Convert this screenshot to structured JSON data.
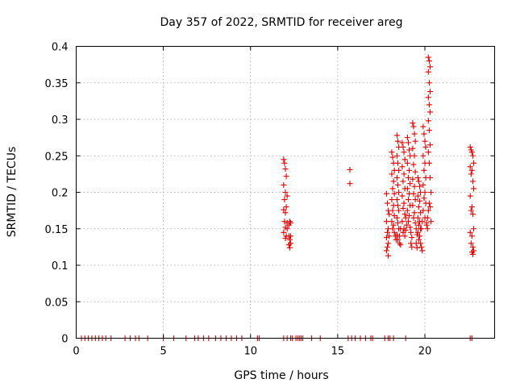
{
  "chart_data": {
    "type": "scatter",
    "title": "Day 357 of 2022, SRMTID for receiver areg",
    "xlabel": "GPS time / hours",
    "ylabel": "SRMTID / TECUs",
    "xlim": [
      0,
      24
    ],
    "ylim": [
      0,
      0.4
    ],
    "xticks": [
      0,
      5,
      10,
      15,
      20
    ],
    "xtick_labels": [
      "0",
      "5",
      "10",
      "15",
      "20"
    ],
    "yticks": [
      0,
      0.05,
      0.1,
      0.15,
      0.2,
      0.25,
      0.3,
      0.35,
      0.4
    ],
    "ytick_labels": [
      "0",
      "0.05",
      "0.1",
      "0.15",
      "0.2",
      "0.25",
      "0.3",
      "0.35",
      "0.4"
    ],
    "grid": true,
    "marker": "+",
    "color": "#e00000",
    "series": [
      {
        "name": "SRMTID",
        "x": [
          0.3,
          0.5,
          0.7,
          0.9,
          1.1,
          1.3,
          1.5,
          1.7,
          2.0,
          2.8,
          3.1,
          3.4,
          3.6,
          4.1,
          5.0,
          5.6,
          6.3,
          6.8,
          7.0,
          7.3,
          7.6,
          8.0,
          8.3,
          8.6,
          8.9,
          9.2,
          9.5,
          10.4,
          10.5,
          11.9,
          12.1,
          12.3,
          12.4,
          12.6,
          12.7,
          12.8,
          12.9,
          13.0,
          13.5,
          14.0,
          15.6,
          15.8,
          16.0,
          16.3,
          16.6,
          16.9,
          17.0,
          17.7,
          17.9,
          18.0,
          18.2,
          18.9,
          22.6,
          22.7,
          11.9,
          11.95,
          12.0,
          12.05,
          11.9,
          12.0,
          12.1,
          11.95,
          12.05,
          11.9,
          12.0,
          11.95,
          12.1,
          12.0,
          11.9,
          12.05,
          12.0,
          12.1,
          12.2,
          12.25,
          12.3,
          12.2,
          12.25,
          12.3,
          12.2,
          12.25,
          12.3,
          15.7,
          15.7,
          17.8,
          17.85,
          17.9,
          17.95,
          17.8,
          17.9,
          17.85,
          17.95,
          17.8,
          17.9,
          17.85,
          17.8,
          17.9,
          18.1,
          18.15,
          18.2,
          18.25,
          18.1,
          18.2,
          18.15,
          18.25,
          18.1,
          18.2,
          18.15,
          18.25,
          18.1,
          18.2,
          18.15,
          18.25,
          18.3,
          18.35,
          18.4,
          18.45,
          18.5,
          18.4,
          18.45,
          18.5,
          18.4,
          18.45,
          18.5,
          18.4,
          18.45,
          18.5,
          18.4,
          18.45,
          18.5,
          18.4,
          18.45,
          18.55,
          18.6,
          18.55,
          18.6,
          18.7,
          18.75,
          18.8,
          18.85,
          18.7,
          18.8,
          18.75,
          18.85,
          18.7,
          18.8,
          18.75,
          18.85,
          18.7,
          18.8,
          18.75,
          18.85,
          18.9,
          18.95,
          18.9,
          19.0,
          19.05,
          19.1,
          19.15,
          19.0,
          19.1,
          19.05,
          19.15,
          19.0,
          19.1,
          19.05,
          19.15,
          19.0,
          19.1,
          19.05,
          19.15,
          19.2,
          19.25,
          19.2,
          19.25,
          19.3,
          19.35,
          19.4,
          19.45,
          19.3,
          19.4,
          19.35,
          19.45,
          19.3,
          19.4,
          19.35,
          19.45,
          19.3,
          19.4,
          19.35,
          19.45,
          19.5,
          19.55,
          19.5,
          19.55,
          19.6,
          19.65,
          19.7,
          19.75,
          19.6,
          19.7,
          19.65,
          19.75,
          19.6,
          19.7,
          19.65,
          19.75,
          19.6,
          19.7,
          19.65,
          19.75,
          19.8,
          19.85,
          19.8,
          19.85,
          19.9,
          19.95,
          20.0,
          20.05,
          19.9,
          20.0,
          19.95,
          20.05,
          19.9,
          20.0,
          19.95,
          20.05,
          19.9,
          20.0,
          20.1,
          20.15,
          20.1,
          20.15,
          20.2,
          20.25,
          20.2,
          20.25,
          20.3,
          20.2,
          20.25,
          20.3,
          20.2,
          20.25,
          20.3,
          20.2,
          20.25,
          20.3,
          20.2,
          20.25,
          20.3,
          20.35,
          20.3,
          20.35,
          22.6,
          22.65,
          22.7,
          22.75,
          22.8,
          22.6,
          22.7,
          22.65,
          22.75,
          22.8,
          22.6,
          22.7,
          22.65,
          22.75,
          22.8,
          22.6,
          22.7,
          22.65,
          22.75,
          22.8,
          22.7,
          22.75
        ],
        "y": [
          0,
          0,
          0,
          0,
          0,
          0,
          0,
          0,
          0,
          0,
          0,
          0,
          0,
          0,
          0,
          0,
          0,
          0,
          0,
          0,
          0,
          0,
          0,
          0,
          0,
          0,
          0,
          0,
          0,
          0,
          0,
          0,
          0,
          0,
          0,
          0,
          0,
          0,
          0,
          0,
          0,
          0,
          0,
          0,
          0,
          0,
          0,
          0,
          0,
          0,
          0,
          0,
          0,
          0,
          0.245,
          0.24,
          0.232,
          0.222,
          0.21,
          0.2,
          0.195,
          0.19,
          0.18,
          0.176,
          0.172,
          0.16,
          0.158,
          0.152,
          0.145,
          0.14,
          0.137,
          0.15,
          0.155,
          0.16,
          0.158,
          0.14,
          0.135,
          0.13,
          0.128,
          0.124,
          0.14,
          0.231,
          0.212,
          0.198,
          0.185,
          0.175,
          0.17,
          0.16,
          0.15,
          0.145,
          0.14,
          0.138,
          0.13,
          0.125,
          0.12,
          0.113,
          0.255,
          0.248,
          0.24,
          0.23,
          0.225,
          0.215,
          0.205,
          0.198,
          0.19,
          0.182,
          0.175,
          0.168,
          0.16,
          0.155,
          0.15,
          0.145,
          0.14,
          0.135,
          0.278,
          0.27,
          0.262,
          0.25,
          0.24,
          0.23,
          0.22,
          0.21,
          0.2,
          0.19,
          0.182,
          0.175,
          0.165,
          0.158,
          0.15,
          0.142,
          0.135,
          0.13,
          0.128,
          0.14,
          0.15,
          0.268,
          0.262,
          0.255,
          0.245,
          0.235,
          0.225,
          0.215,
          0.205,
          0.195,
          0.185,
          0.178,
          0.17,
          0.16,
          0.15,
          0.145,
          0.14,
          0.148,
          0.155,
          0.165,
          0.275,
          0.268,
          0.258,
          0.25,
          0.24,
          0.23,
          0.22,
          0.212,
          0.205,
          0.198,
          0.19,
          0.182,
          0.175,
          0.168,
          0.16,
          0.152,
          0.145,
          0.138,
          0.13,
          0.125,
          0.295,
          0.29,
          0.28,
          0.27,
          0.26,
          0.25,
          0.238,
          0.228,
          0.218,
          0.208,
          0.198,
          0.19,
          0.182,
          0.172,
          0.165,
          0.158,
          0.15,
          0.142,
          0.13,
          0.124,
          0.22,
          0.215,
          0.208,
          0.2,
          0.195,
          0.188,
          0.18,
          0.172,
          0.165,
          0.16,
          0.155,
          0.15,
          0.145,
          0.14,
          0.135,
          0.13,
          0.125,
          0.12,
          0.15,
          0.16,
          0.29,
          0.28,
          0.27,
          0.262,
          0.25,
          0.24,
          0.23,
          0.22,
          0.21,
          0.2,
          0.192,
          0.185,
          0.175,
          0.165,
          0.158,
          0.15,
          0.155,
          0.165,
          0.175,
          0.185,
          0.385,
          0.38,
          0.372,
          0.365,
          0.35,
          0.338,
          0.33,
          0.32,
          0.31,
          0.298,
          0.285,
          0.265,
          0.255,
          0.24,
          0.22,
          0.2,
          0.18,
          0.16,
          0.262,
          0.258,
          0.255,
          0.25,
          0.24,
          0.235,
          0.23,
          0.225,
          0.215,
          0.205,
          0.195,
          0.18,
          0.175,
          0.17,
          0.15,
          0.145,
          0.14,
          0.13,
          0.125,
          0.12,
          0.118,
          0.115
        ]
      }
    ]
  }
}
